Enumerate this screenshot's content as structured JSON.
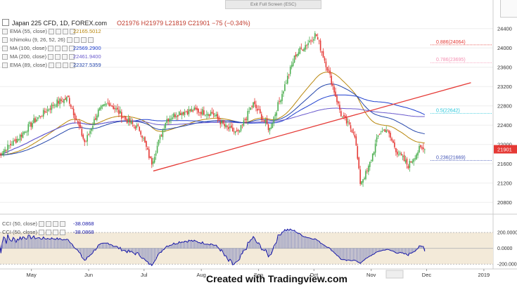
{
  "exit_label": "Exit Full Screen (ESC)",
  "watermark": "Created with Tradingview.com",
  "header": {
    "title": "Japan 225 CFD, 1D, FOREX.com",
    "ohlc": "O21976  H21979  L21819  C21901  −75 (−0.34%)"
  },
  "indicators": [
    {
      "name": "EMA (55, close)",
      "value": "22165.5012",
      "color": "#b8860b"
    },
    {
      "name": "Ichimoku (9, 26, 52, 26)",
      "value": "",
      "color": "#2e7d32"
    },
    {
      "name": "MA (100, close)",
      "value": "22569.2900",
      "color": "#1e3fcf"
    },
    {
      "name": "MA (200, close)",
      "value": "22461.9400",
      "color": "#6a5acd"
    },
    {
      "name": "EMA (89, close)",
      "value": "22327.5359",
      "color": "#2244aa"
    }
  ],
  "cci_labels": [
    {
      "name": "CCI (50, close)",
      "value": "-38.0868"
    },
    {
      "name": "CCI (50, close)",
      "value": "-38.0868"
    }
  ],
  "price_axis": {
    "ticks": [
      "24400",
      "24000",
      "23600",
      "23200",
      "22800",
      "22400",
      "22000",
      "21600",
      "21200",
      "20800"
    ],
    "last_price": "21901",
    "last_price_color": "#e53935"
  },
  "cci_axis": {
    "ticks": [
      "200.0000",
      "0.0000",
      "-200.0000"
    ]
  },
  "x_axis": {
    "ticks": [
      "May",
      "Jun",
      "Jul",
      "Aug",
      "Sep",
      "Oct",
      "Nov",
      "Dec",
      "2019"
    ]
  },
  "fib_levels": [
    {
      "label": "0.886(24064)",
      "value": 24064,
      "color": "#e53935"
    },
    {
      "label": "0.786(23695)",
      "value": 23695,
      "color": "#f48fb1"
    },
    {
      "label": "0.5(22642)",
      "value": 22642,
      "color": "#26c6da"
    },
    {
      "label": "0.236(21669)",
      "value": 21669,
      "color": "#3f51b5"
    }
  ],
  "chart_data": {
    "type": "candlestick",
    "title": "Japan 225 CFD, 1D, FOREX.com",
    "x_label": "",
    "y_label": "",
    "ylim": [
      20600,
      24600
    ],
    "cci_ylim": [
      -260,
      360
    ],
    "series_ohlc_close_approx": [
      {
        "date": "2018-04-13",
        "close": 21780
      },
      {
        "date": "2018-04-23",
        "close": 22100
      },
      {
        "date": "2018-05-02",
        "close": 22470
      },
      {
        "date": "2018-05-14",
        "close": 22860
      },
      {
        "date": "2018-05-21",
        "close": 22960
      },
      {
        "date": "2018-05-30",
        "close": 22030
      },
      {
        "date": "2018-06-06",
        "close": 22680
      },
      {
        "date": "2018-06-12",
        "close": 22870
      },
      {
        "date": "2018-06-21",
        "close": 22520
      },
      {
        "date": "2018-06-29",
        "close": 22300
      },
      {
        "date": "2018-07-05",
        "close": 21610
      },
      {
        "date": "2018-07-13",
        "close": 22520
      },
      {
        "date": "2018-07-20",
        "close": 22660
      },
      {
        "date": "2018-07-27",
        "close": 22710
      },
      {
        "date": "2018-08-07",
        "close": 22650
      },
      {
        "date": "2018-08-14",
        "close": 22360
      },
      {
        "date": "2018-08-21",
        "close": 22220
      },
      {
        "date": "2018-08-29",
        "close": 22850
      },
      {
        "date": "2018-09-07",
        "close": 22310
      },
      {
        "date": "2018-09-14",
        "close": 23090
      },
      {
        "date": "2018-09-21",
        "close": 23860
      },
      {
        "date": "2018-09-28",
        "close": 24120
      },
      {
        "date": "2018-10-02",
        "close": 24290
      },
      {
        "date": "2018-10-09",
        "close": 23500
      },
      {
        "date": "2018-10-16",
        "close": 22580
      },
      {
        "date": "2018-10-23",
        "close": 22240
      },
      {
        "date": "2018-10-26",
        "close": 21210
      },
      {
        "date": "2018-10-30",
        "close": 21450
      },
      {
        "date": "2018-11-05",
        "close": 22210
      },
      {
        "date": "2018-11-09",
        "close": 22330
      },
      {
        "date": "2018-11-15",
        "close": 21850
      },
      {
        "date": "2018-11-21",
        "close": 21560
      },
      {
        "date": "2018-11-27",
        "close": 21900
      },
      {
        "date": "2018-11-30",
        "close": 21901
      }
    ],
    "moving_averages": [
      {
        "name": "EMA (55, close)",
        "last": 22165.5012
      },
      {
        "name": "MA (100, close)",
        "last": 22569.29
      },
      {
        "name": "MA (200, close)",
        "last": 22461.94
      },
      {
        "name": "EMA (89, close)",
        "last": 22327.5359
      }
    ],
    "cci_last": -38.0868
  }
}
